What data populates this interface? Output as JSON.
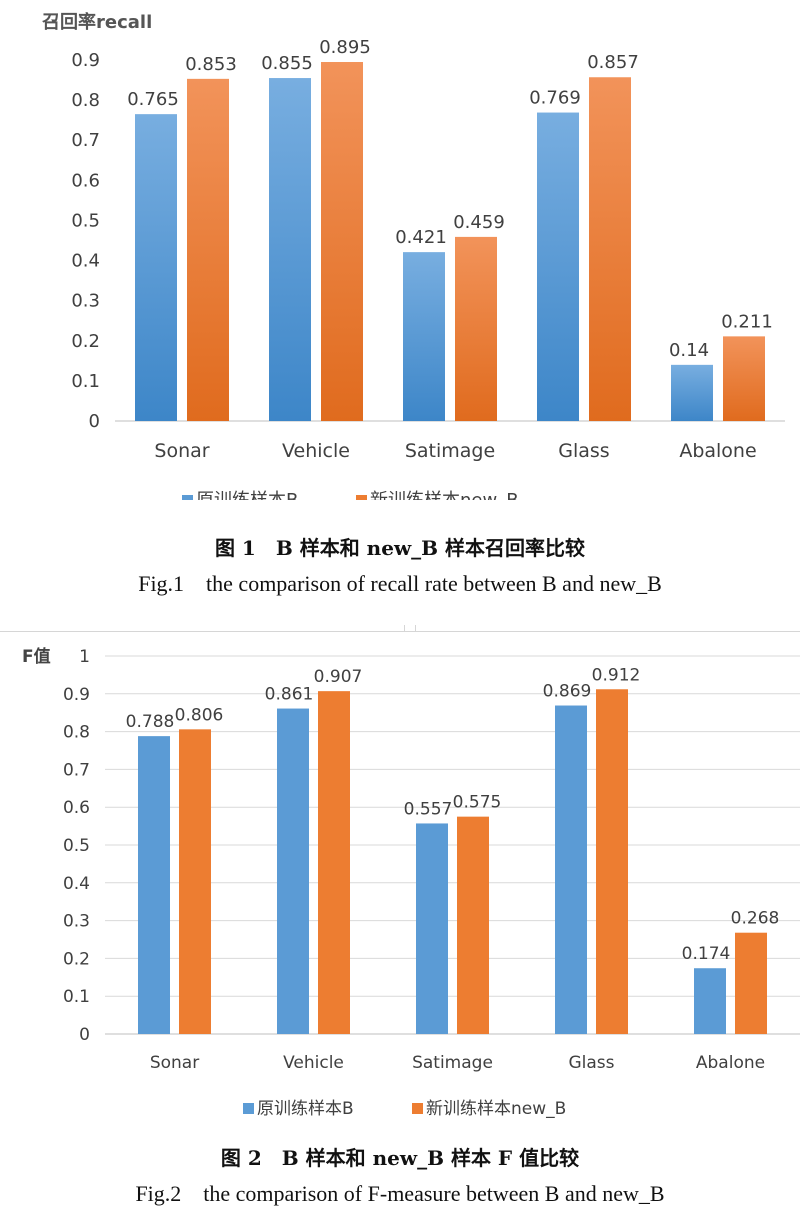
{
  "chart_data": [
    {
      "type": "bar",
      "ylabel": "召回率recall",
      "categories": [
        "Sonar",
        "Vehicle",
        "Satimage",
        "Glass",
        "Abalone"
      ],
      "series": [
        {
          "name": "原训练样本B",
          "values": [
            0.765,
            0.855,
            0.421,
            0.769,
            0.14
          ],
          "value_labels": [
            "0.765",
            "0.855",
            "0.421",
            "0.769",
            "0.14"
          ]
        },
        {
          "name": "新训练样本new_B",
          "values": [
            0.853,
            0.895,
            0.459,
            0.857,
            0.211
          ],
          "value_labels": [
            "0.853",
            "0.895",
            "0.459",
            "0.857",
            "0.211"
          ]
        }
      ],
      "ylim": [
        0,
        0.9
      ],
      "yticks": [
        "0",
        "0.1",
        "0.2",
        "0.3",
        "0.4",
        "0.5",
        "0.6",
        "0.7",
        "0.8",
        "0.9"
      ],
      "legend_position": "bottom",
      "grid": false,
      "colors": [
        "#5b9bd5",
        "#ed7d31"
      ],
      "gradient_bars": true
    },
    {
      "type": "bar",
      "ylabel": "F值",
      "categories": [
        "Sonar",
        "Vehicle",
        "Satimage",
        "Glass",
        "Abalone"
      ],
      "series": [
        {
          "name": "原训练样本B",
          "values": [
            0.788,
            0.861,
            0.557,
            0.869,
            0.174
          ],
          "value_labels": [
            "0.788",
            "0.861",
            "0.557",
            "0.869",
            "0.174"
          ]
        },
        {
          "name": "新训练样本new_B",
          "values": [
            0.806,
            0.907,
            0.575,
            0.912,
            0.268
          ],
          "value_labels": [
            "0.806",
            "0.907",
            "0.575",
            "0.912",
            "0.268"
          ]
        }
      ],
      "ylim": [
        0,
        1
      ],
      "yticks": [
        "0",
        "0.1",
        "0.2",
        "0.3",
        "0.4",
        "0.5",
        "0.6",
        "0.7",
        "0.8",
        "0.9",
        "1"
      ],
      "legend_position": "bottom",
      "grid": true,
      "colors": [
        "#5b9bd5",
        "#ed7d31"
      ],
      "gradient_bars": false
    }
  ],
  "captions": {
    "fig1_zh": "图 1　B 样本和 new_B 样本召回率比较",
    "fig1_en": "Fig.1　the comparison of recall rate between B and new_B",
    "fig2_zh": "图 2　B 样本和 new_B 样本 F 值比较",
    "fig2_en": "Fig.2　the comparison of F-measure between B and new_B"
  }
}
